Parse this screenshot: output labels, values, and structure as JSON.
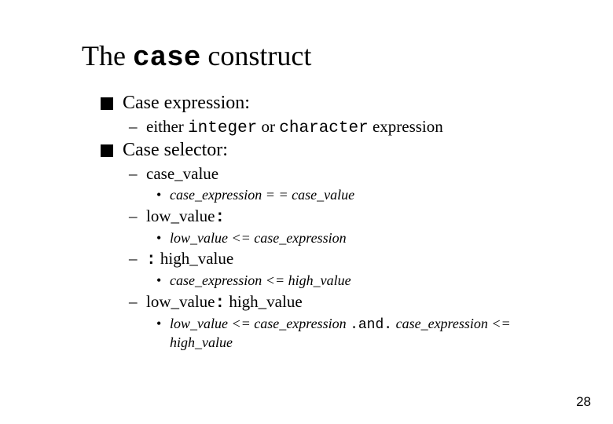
{
  "colors": {
    "background": "#ffffff",
    "text": "#000000",
    "bullet_square": "#000000"
  },
  "typography": {
    "serif_family": "Times New Roman",
    "mono_family": "Courier New",
    "title_fontsize_pt": 28,
    "l1_fontsize_pt": 18,
    "l2_fontsize_pt": 16,
    "l3_fontsize_pt": 14,
    "page_num_fontsize_pt": 13
  },
  "title": {
    "pre": "The ",
    "mono": "case",
    "post": " construct"
  },
  "l1_case_expression": "Case expression:",
  "l2_either_pre": "either ",
  "l2_either_kw1": "integer",
  "l2_either_mid": " or ",
  "l2_either_kw2": "character",
  "l2_either_post": " expression",
  "l1_case_selector": "Case selector:",
  "l2_case_value": "case_value",
  "l3_case_value_eq": "case_expression = = case_value",
  "l2_low_label": "low_value",
  "l2_low_colon": ":",
  "l3_low_expr": "low_value <= case_expression",
  "l2_high_colon": ":",
  "l2_high_label": " high_value",
  "l3_high_expr": "case_expression <= high_value",
  "l2_range_low": "low_value",
  "l2_range_colon": ":",
  "l2_range_high": " high_value",
  "l3_range_part1": "low_value <= case_expression ",
  "l3_range_and": ".and.",
  "l3_range_part2": " case_expression <= high_value",
  "page_number": "28"
}
